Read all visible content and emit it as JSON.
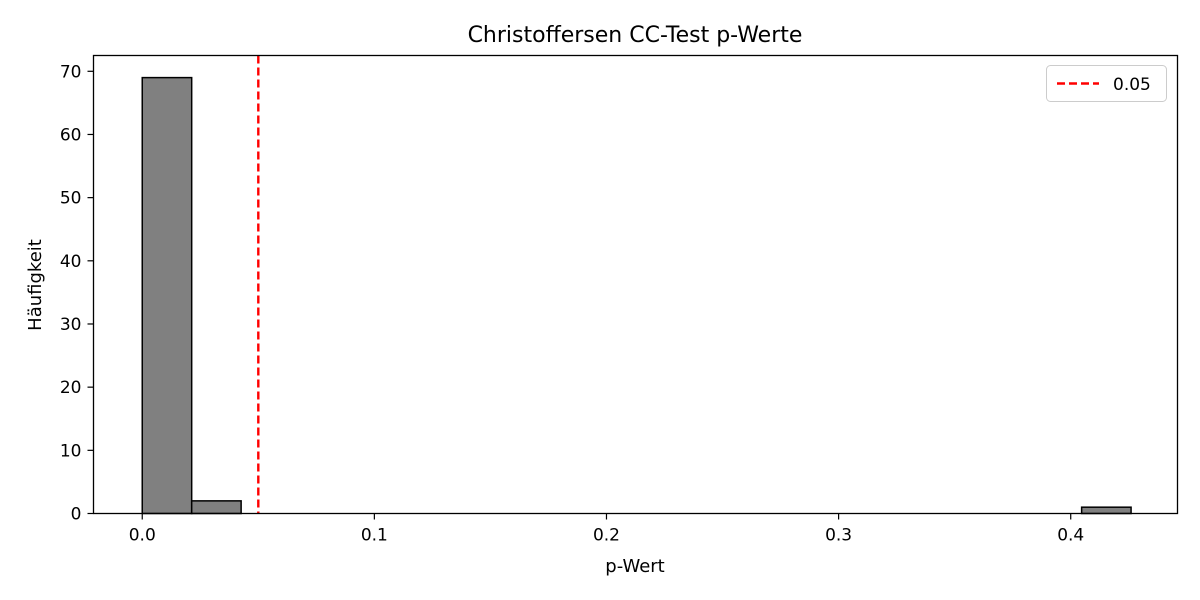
{
  "chart_data": {
    "type": "bar",
    "title": "Christoffersen CC-Test p-Werte",
    "xlabel": "p-Wert",
    "ylabel": "Häufigkeit",
    "xlim": [
      -0.021,
      0.446
    ],
    "ylim": [
      0,
      72.5
    ],
    "xticks": [
      0.0,
      0.1,
      0.2,
      0.3,
      0.4
    ],
    "xtick_labels": [
      "0.0",
      "0.1",
      "0.2",
      "0.3",
      "0.4"
    ],
    "yticks": [
      0,
      10,
      20,
      30,
      40,
      50,
      60,
      70
    ],
    "ytick_labels": [
      "0",
      "10",
      "20",
      "30",
      "40",
      "50",
      "60",
      "70"
    ],
    "bin_edges": [
      0.0,
      0.0213,
      0.0426,
      0.0639,
      0.0852,
      0.1065,
      0.1278,
      0.1491,
      0.1704,
      0.1917,
      0.213,
      0.2343,
      0.2556,
      0.2769,
      0.2982,
      0.3195,
      0.3408,
      0.3621,
      0.3834,
      0.4047,
      0.426
    ],
    "values": [
      69,
      2,
      0,
      0,
      0,
      0,
      0,
      0,
      0,
      0,
      0,
      0,
      0,
      0,
      0,
      0,
      0,
      0,
      0,
      1
    ],
    "bar_color": "#808080",
    "bar_edge_color": "#000000",
    "threshold": {
      "value": 0.05,
      "label": "0.05",
      "color": "#ff0000",
      "style": "dashed"
    },
    "legend": {
      "position": "top-right",
      "entries": [
        "0.05"
      ]
    },
    "grid": false
  }
}
